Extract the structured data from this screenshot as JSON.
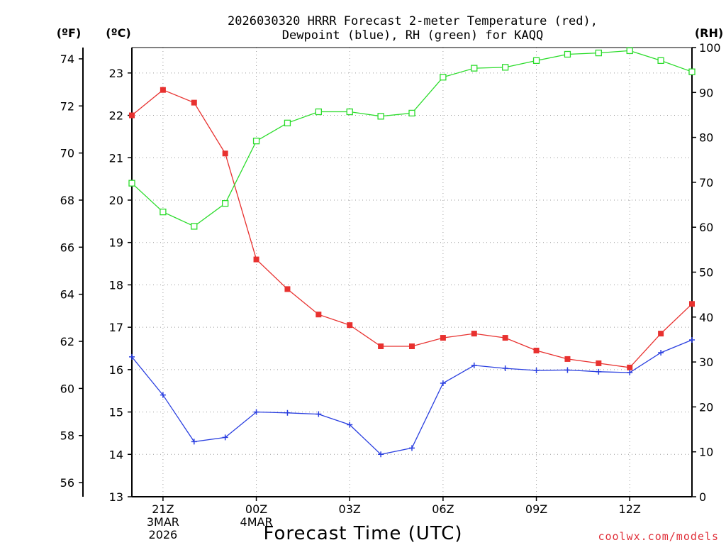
{
  "title_line1": "2026030320 HRRR Forecast 2-meter Temperature (red),",
  "title_line2": "Dewpoint (blue), RH (green) for KAQQ",
  "axis_unit_f": "(ºF)",
  "axis_unit_c": "(ºC)",
  "axis_unit_rh": "(RH)",
  "x_axis_title": "Forecast Time (UTC)",
  "credit": "coolwx.com/models",
  "colors": {
    "temperature": "#e8312f",
    "dewpoint": "#2a3fe0",
    "rh": "#2bdc2b",
    "credit": "#e0303a",
    "grid": "#9a9a9a"
  },
  "chart_data": {
    "type": "line",
    "title": "2026030320 HRRR Forecast 2-meter Temperature (red), Dewpoint (blue), RH (green) for KAQQ",
    "xlabel": "Forecast Time (UTC)",
    "x_range_hours": [
      20,
      38
    ],
    "x_ticks": [
      {
        "hour": 21,
        "label": "21Z",
        "sub1": "3MAR",
        "sub2": "2026"
      },
      {
        "hour": 24,
        "label": "00Z",
        "sub1": "4MAR",
        "sub2": ""
      },
      {
        "hour": 27,
        "label": "03Z",
        "sub1": "",
        "sub2": ""
      },
      {
        "hour": 30,
        "label": "06Z",
        "sub1": "",
        "sub2": ""
      },
      {
        "hour": 33,
        "label": "09Z",
        "sub1": "",
        "sub2": ""
      },
      {
        "hour": 36,
        "label": "12Z",
        "sub1": "",
        "sub2": ""
      }
    ],
    "celsius_axis": {
      "label": "(ºC)",
      "ylim": [
        13,
        23.6
      ],
      "ticks": [
        13,
        14,
        15,
        16,
        17,
        18,
        19,
        20,
        21,
        22,
        23
      ]
    },
    "fahrenheit_axis": {
      "label": "(ºF)",
      "ticks": [
        56,
        58,
        60,
        62,
        64,
        66,
        68,
        70,
        72,
        74
      ]
    },
    "rh_axis": {
      "label": "(RH)",
      "ylim": [
        0,
        100
      ],
      "ticks": [
        0,
        10,
        20,
        30,
        40,
        50,
        60,
        70,
        80,
        90,
        100
      ]
    },
    "hours": [
      20,
      21,
      22,
      23,
      24,
      25,
      26,
      27,
      28,
      29,
      30,
      31,
      32,
      33,
      34,
      35,
      36,
      37,
      38
    ],
    "series": [
      {
        "name": "Temperature (red)",
        "units": "C",
        "axis": "celsius",
        "color": "temperature",
        "marker": "filled-square",
        "values": [
          22.0,
          22.6,
          22.3,
          21.1,
          18.6,
          17.9,
          17.3,
          17.05,
          16.55,
          16.55,
          16.75,
          16.85,
          16.75,
          16.45,
          16.25,
          16.15,
          16.05,
          16.85,
          17.55
        ]
      },
      {
        "name": "Dewpoint (blue)",
        "units": "C",
        "axis": "celsius",
        "color": "dewpoint",
        "marker": "plus",
        "values": [
          16.3,
          15.4,
          14.3,
          14.4,
          15.0,
          14.98,
          14.95,
          14.7,
          14.0,
          14.15,
          15.68,
          16.1,
          16.03,
          15.98,
          15.99,
          15.95,
          15.93,
          16.4,
          16.7
        ]
      },
      {
        "name": "RH (green)",
        "units": "%",
        "axis": "rh",
        "color": "rh",
        "marker": "open-square",
        "values": [
          69.8,
          63.4,
          60.2,
          65.3,
          79.2,
          83.2,
          85.7,
          85.7,
          84.7,
          85.4,
          93.4,
          95.4,
          95.6,
          97.1,
          98.5,
          98.8,
          99.3,
          97.1,
          94.6
        ]
      }
    ]
  }
}
